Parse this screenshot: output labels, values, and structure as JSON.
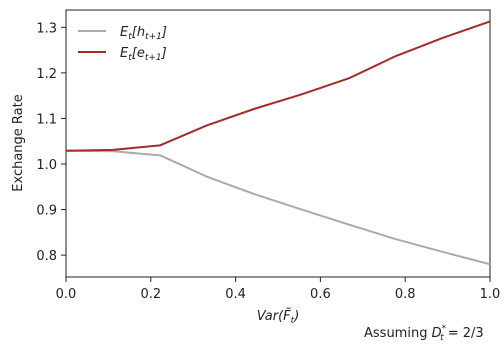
{
  "chart_data": {
    "type": "line",
    "title": "",
    "xlabel": "Var(F̃_t)",
    "ylabel": "Exchange Rate",
    "xlim": [
      0.0,
      1.0
    ],
    "ylim": [
      0.752,
      1.338
    ],
    "xticks": [
      "0.0",
      "0.2",
      "0.4",
      "0.6",
      "0.8",
      "1.0"
    ],
    "xtick_values": [
      0.0,
      0.2,
      0.4,
      0.6,
      0.8,
      1.0
    ],
    "yticks": [
      "0.8",
      "0.9",
      "1.0",
      "1.1",
      "1.2",
      "1.3"
    ],
    "ytick_values": [
      0.8,
      0.9,
      1.0,
      1.1,
      1.2,
      1.3
    ],
    "grid": false,
    "legend_position": "top-left",
    "x": [
      0.0,
      0.111,
      0.222,
      0.333,
      0.444,
      0.556,
      0.667,
      0.778,
      0.889,
      1.0
    ],
    "series": [
      {
        "name": "E_t[h_{t+1}]",
        "color": "#aaaaaa",
        "values": [
          1.029,
          1.028,
          1.019,
          0.972,
          0.934,
          0.9,
          0.867,
          0.835,
          0.807,
          0.78
        ]
      },
      {
        "name": "E_t[e_{t+1}]",
        "color": "#a52a2a",
        "values": [
          1.029,
          1.031,
          1.041,
          1.085,
          1.121,
          1.153,
          1.188,
          1.237,
          1.277,
          1.313
        ]
      }
    ],
    "annotation": "Assuming D_t^* = 2/3"
  }
}
